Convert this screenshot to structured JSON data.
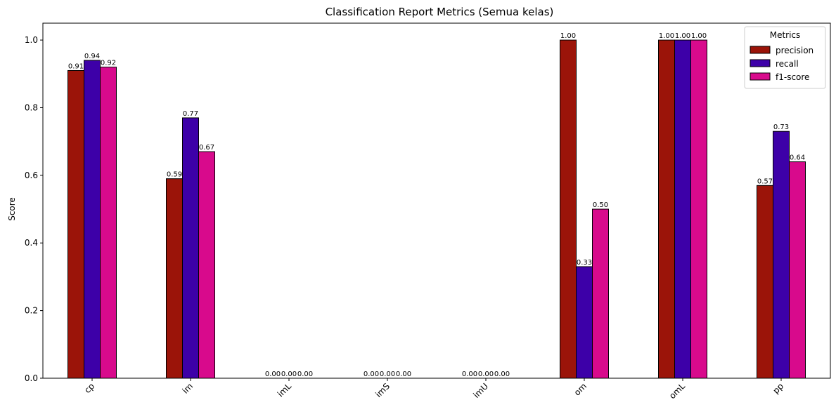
{
  "chart_data": {
    "type": "bar",
    "title": "Classification Report Metrics (Semua kelas)",
    "xlabel": "",
    "ylabel": "Score",
    "ylim": [
      0,
      1.05
    ],
    "yticks": [
      0.0,
      0.2,
      0.4,
      0.6,
      0.8,
      1.0
    ],
    "ytick_labels": [
      "0.0",
      "0.2",
      "0.4",
      "0.6",
      "0.8",
      "1.0"
    ],
    "categories": [
      "cp",
      "im",
      "imL",
      "imS",
      "imU",
      "om",
      "omL",
      "pp"
    ],
    "series": [
      {
        "name": "precision",
        "color": "#9b1409",
        "values": [
          0.91,
          0.59,
          0.0,
          0.0,
          0.0,
          1.0,
          1.0,
          0.57
        ]
      },
      {
        "name": "recall",
        "color": "#3d00a8",
        "values": [
          0.94,
          0.77,
          0.0,
          0.0,
          0.0,
          0.33,
          1.0,
          0.73
        ]
      },
      {
        "name": "f1-score",
        "color": "#d80a8c",
        "values": [
          0.92,
          0.67,
          0.0,
          0.0,
          0.0,
          0.5,
          1.0,
          0.64
        ]
      }
    ],
    "data_labels": [
      [
        "0.91",
        "0.59",
        "0.00",
        "0.00",
        "0.00",
        "1.00",
        "1.00",
        "0.57"
      ],
      [
        "0.94",
        "0.77",
        "0.00",
        "0.00",
        "0.00",
        "0.33",
        "1.00",
        "0.73"
      ],
      [
        "0.92",
        "0.67",
        "0.00",
        "0.00",
        "0.00",
        "0.50",
        "1.00",
        "0.64"
      ]
    ],
    "legend": {
      "title": "Metrics",
      "placement": "top-right"
    },
    "grid": false
  }
}
